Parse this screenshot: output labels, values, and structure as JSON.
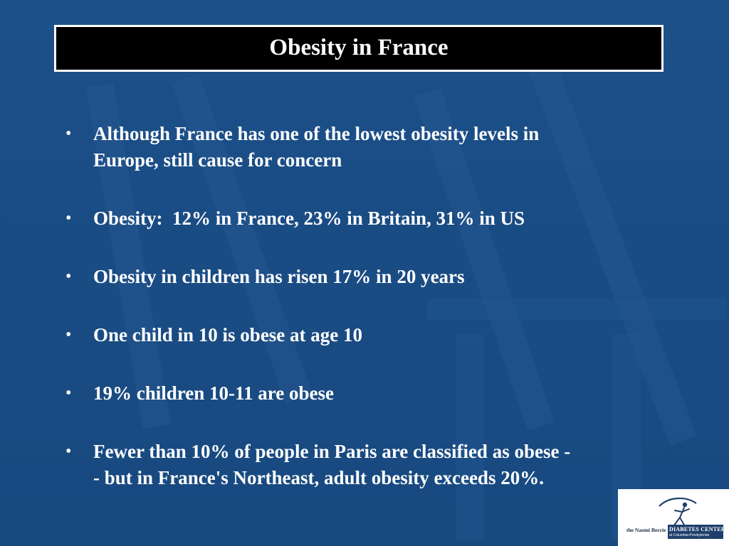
{
  "slide": {
    "title": "Obesity in France",
    "bullet_glyph": "•",
    "bullets": [
      {
        "lines": [
          "Although France has one of the lowest obesity levels in",
          "Europe, still cause for concern"
        ]
      },
      {
        "lines": [
          "Obesity:  12% in France, 23% in Britain, 31% in US"
        ]
      },
      {
        "lines": [
          "Obesity in children has risen 17% in 20 years"
        ]
      },
      {
        "lines": [
          "One child in 10 is obese at age 10"
        ]
      },
      {
        "lines": [
          "19% children 10-11 are obese"
        ]
      },
      {
        "lines": [
          "Fewer than 10% of people in Paris are classified as obese -",
          "- but in France's Northeast, adult obesity exceeds 20%."
        ]
      }
    ]
  },
  "logo": {
    "prefix": "the Naomi Berrie",
    "name": "DIABETES CENTER",
    "subtitle": "at Columbia-Presbyterian",
    "icon": "runner-figure-icon"
  },
  "colors": {
    "background": "#1b4f86",
    "title_bar": "#000000",
    "text": "#ffffff",
    "logo_band": "#1f3f6b"
  }
}
